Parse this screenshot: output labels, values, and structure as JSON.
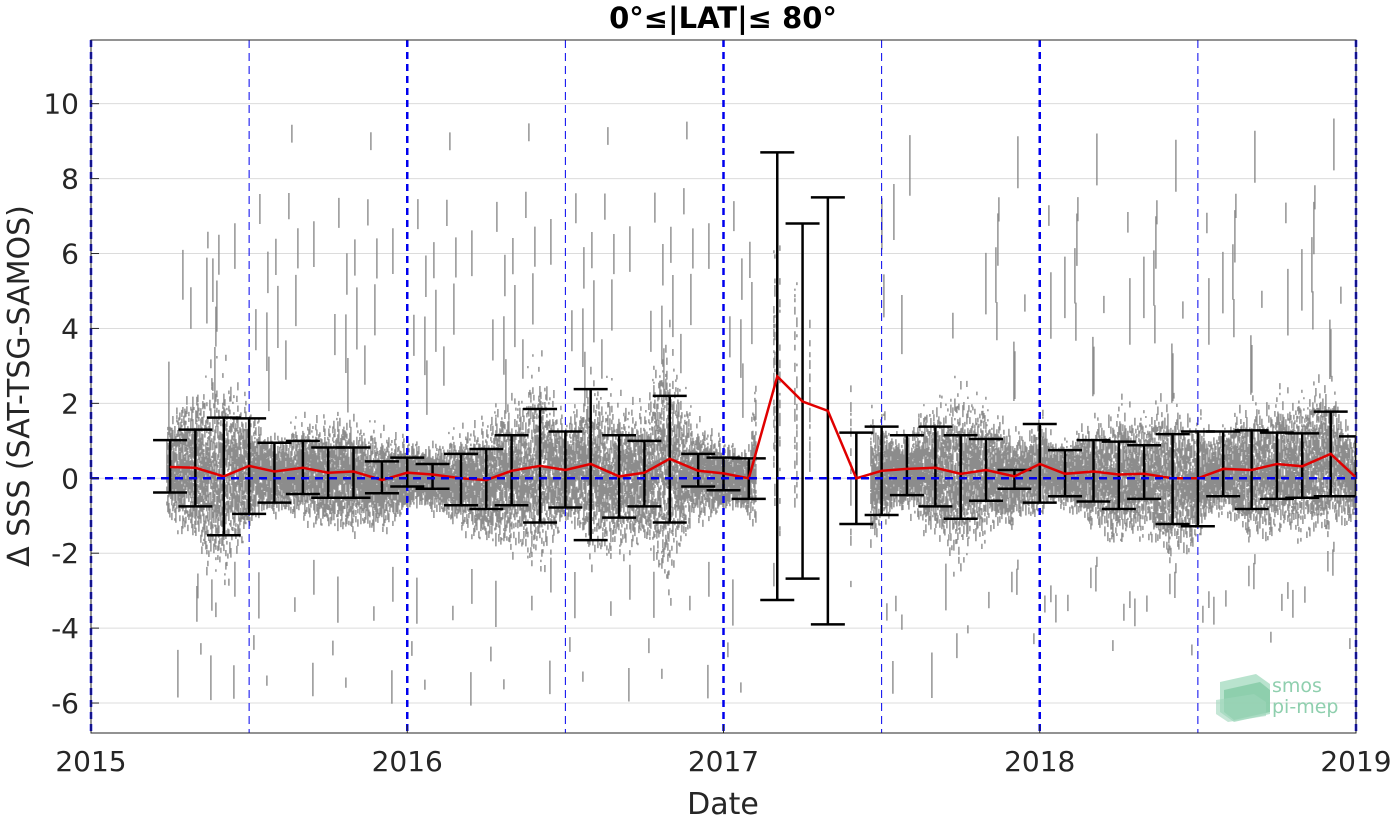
{
  "chart_data": {
    "type": "scatter",
    "title": "0°≤|LAT|≤ 80°",
    "xlabel": "Date",
    "ylabel": "Δ SSS (SAT-TSG-SAMOS)",
    "xlim": [
      2015.0,
      2019.0
    ],
    "ylim": [
      -6.8,
      11.7
    ],
    "x_ticks": [
      "2015",
      "2016",
      "2017",
      "2018",
      "2019"
    ],
    "y_ticks": [
      "-6",
      "-4",
      "-2",
      "0",
      "2",
      "4",
      "6",
      "8",
      "10"
    ],
    "y_tick_values": [
      -6,
      -4,
      -2,
      0,
      2,
      4,
      6,
      8,
      10
    ],
    "grid": true,
    "reference_line_y": 0,
    "year_boundaries": [
      2015,
      2016,
      2017,
      2018,
      2019
    ],
    "mid_year_lines": [
      2015.5,
      2016.5,
      2017.5,
      2018.5
    ],
    "scatter_color": "#808080",
    "mean_color": "#e00000",
    "errorbar_color": "#000000",
    "reference_color": "#0000ee",
    "monthly_stats": {
      "x": [
        2015.25,
        2015.33,
        2015.42,
        2015.5,
        2015.58,
        2015.67,
        2015.75,
        2015.83,
        2015.92,
        2016.0,
        2016.08,
        2016.17,
        2016.25,
        2016.33,
        2016.42,
        2016.5,
        2016.58,
        2016.67,
        2016.75,
        2016.83,
        2016.92,
        2017.0,
        2017.08,
        2017.17,
        2017.25,
        2017.33,
        2017.42,
        2017.5,
        2017.58,
        2017.67,
        2017.75,
        2017.83,
        2017.92,
        2018.0,
        2018.08,
        2018.17,
        2018.25,
        2018.33,
        2018.42,
        2018.5,
        2018.58,
        2018.67,
        2018.75,
        2018.83,
        2018.92,
        2019.0
      ],
      "mean": [
        0.3,
        0.28,
        0.05,
        0.33,
        0.18,
        0.28,
        0.15,
        0.18,
        -0.05,
        0.15,
        0.1,
        0.0,
        -0.05,
        0.2,
        0.33,
        0.22,
        0.38,
        0.05,
        0.15,
        0.52,
        0.2,
        0.13,
        0.0,
        2.72,
        2.05,
        1.8,
        0.0,
        0.2,
        0.25,
        0.28,
        0.12,
        0.22,
        0.05,
        0.38,
        0.12,
        0.18,
        0.1,
        0.12,
        0.0,
        0.0,
        0.25,
        0.22,
        0.38,
        0.32,
        0.65,
        0.02
      ],
      "upper": [
        1.02,
        1.3,
        1.62,
        1.6,
        0.95,
        1.0,
        0.82,
        0.82,
        0.45,
        0.55,
        0.38,
        0.65,
        0.78,
        1.15,
        1.85,
        1.25,
        2.38,
        1.15,
        1.0,
        2.2,
        0.65,
        0.55,
        0.53,
        8.7,
        6.8,
        7.5,
        1.22,
        1.38,
        1.15,
        1.38,
        1.15,
        1.05,
        0.22,
        1.45,
        0.75,
        1.02,
        0.98,
        0.88,
        1.18,
        1.25,
        1.25,
        1.28,
        1.22,
        1.2,
        1.78,
        1.12
      ],
      "lower": [
        -0.38,
        -0.75,
        -1.52,
        -0.95,
        -0.65,
        -0.42,
        -0.52,
        -0.52,
        -0.4,
        -0.22,
        -0.28,
        -0.72,
        -0.82,
        -0.72,
        -1.18,
        -0.78,
        -1.65,
        -1.05,
        -0.75,
        -1.18,
        -0.22,
        -0.32,
        -0.55,
        -3.25,
        -2.68,
        -3.9,
        -1.22,
        -0.98,
        -0.45,
        -0.75,
        -1.08,
        -0.6,
        -0.28,
        -0.65,
        -0.48,
        -0.62,
        -0.82,
        -0.55,
        -1.22,
        -1.28,
        -0.48,
        -0.82,
        -0.55,
        -0.52,
        -0.48,
        -0.48
      ]
    }
  },
  "logo": {
    "line1": "smos",
    "line2": "pi-mep"
  }
}
